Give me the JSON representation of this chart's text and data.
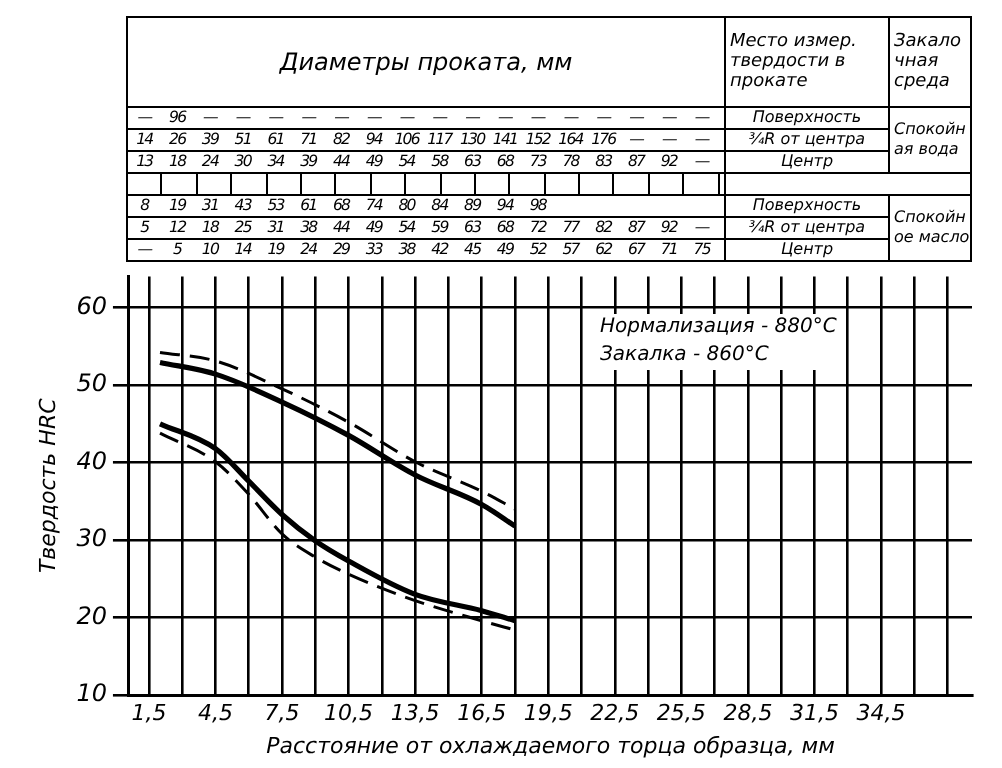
{
  "chart_data": {
    "type": "line",
    "xlabel": "Расстояние от охлаждаемого торца образца, мм",
    "ylabel": "Твердость HRC",
    "series": [
      {
        "color": "#000000",
        "line_style": "solid",
        "x": [
          2,
          4.5,
          7.5,
          10.5,
          13.5,
          16.5,
          18
        ],
        "values": [
          52.9,
          51.4,
          47.8,
          43.5,
          38.4,
          34.6,
          31.8
        ]
      },
      {
        "color": "#000000",
        "line_style": "dashed",
        "x": [
          2,
          4.5,
          7.5,
          10.5,
          13.5,
          16.5,
          18
        ],
        "values": [
          54.2,
          53.1,
          49.5,
          45.2,
          40.1,
          36.3,
          34
        ]
      },
      {
        "color": "#000000",
        "line_style": "solid",
        "x": [
          2,
          4.5,
          6,
          7.5,
          9,
          10.5,
          13.5,
          16.5,
          18
        ],
        "values": [
          45,
          41.8,
          37.6,
          33.3,
          29.9,
          27.3,
          23,
          20.9,
          19.6
        ]
      },
      {
        "color": "#000000",
        "line_style": "dashed",
        "x": [
          2,
          4.5,
          6,
          7.5,
          9,
          10.5,
          13.5,
          16.5,
          18
        ],
        "values": [
          43.8,
          40.1,
          35.9,
          30.8,
          27.8,
          25.6,
          22.2,
          19.6,
          18.4
        ]
      }
    ],
    "xlim": [
      0.6,
      38.6
    ],
    "xticks": [
      {
        "value": 1.5,
        "label": "1,5"
      },
      {
        "value": 3,
        "label": null
      },
      {
        "value": 4.5,
        "label": "4,5"
      },
      {
        "value": 6,
        "label": null
      },
      {
        "value": 7.5,
        "label": "7,5"
      },
      {
        "value": 9,
        "label": null
      },
      {
        "value": 10.5,
        "label": "10,5"
      },
      {
        "value": 12,
        "label": null
      },
      {
        "value": 13.5,
        "label": "13,5"
      },
      {
        "value": 15,
        "label": null
      },
      {
        "value": 16.5,
        "label": "16,5"
      },
      {
        "value": 18,
        "label": null
      },
      {
        "value": 19.5,
        "label": "19,5"
      },
      {
        "value": 21,
        "label": null
      },
      {
        "value": 22.5,
        "label": "22,5"
      },
      {
        "value": 24,
        "label": null
      },
      {
        "value": 25.5,
        "label": "25,5"
      },
      {
        "value": 27,
        "label": null
      },
      {
        "value": 28.5,
        "label": "28,5"
      },
      {
        "value": 30,
        "label": null
      },
      {
        "value": 31.5,
        "label": "31,5"
      },
      {
        "value": 33,
        "label": null
      },
      {
        "value": 34.5,
        "label": "34,5"
      },
      {
        "value": 36,
        "label": null
      },
      {
        "value": 37.5,
        "label": null
      }
    ],
    "ylim": [
      10,
      64
    ],
    "yticks": [
      10,
      20,
      30,
      40,
      50,
      60
    ],
    "grid": true,
    "legend": false,
    "marker": "none",
    "annotations": [
      "Диаметры проката, мм",
      "Место измер. твердости в прокате",
      "Закалочная среда",
      "— 96 — — — — — — — — — — — — — — — —",
      "14 26 39 51 61 71 82 94 106 117 130 141 152 164 176 — — —",
      "13 18 24 30 34 39 44 49 54 58 63 68 73 78 83 87 92 —",
      "Поверхность",
      "¾R от центра",
      "Центр",
      "Спокойная вода",
      "8 19 31 43 53 61 68 74 80 84 89 94 98",
      "5 12 18 25 31 38 44 49 54 59 63 68 72 77 82 87 92 —",
      "— 5 10 14 19 24 29 33 38 42 45 49 52 57 62 67 71 75",
      "Поверхность",
      "¾R от центра",
      "Центр",
      "Спокойное масло",
      "Нормализация - 880°C",
      "Закалка - 860°C"
    ]
  }
}
